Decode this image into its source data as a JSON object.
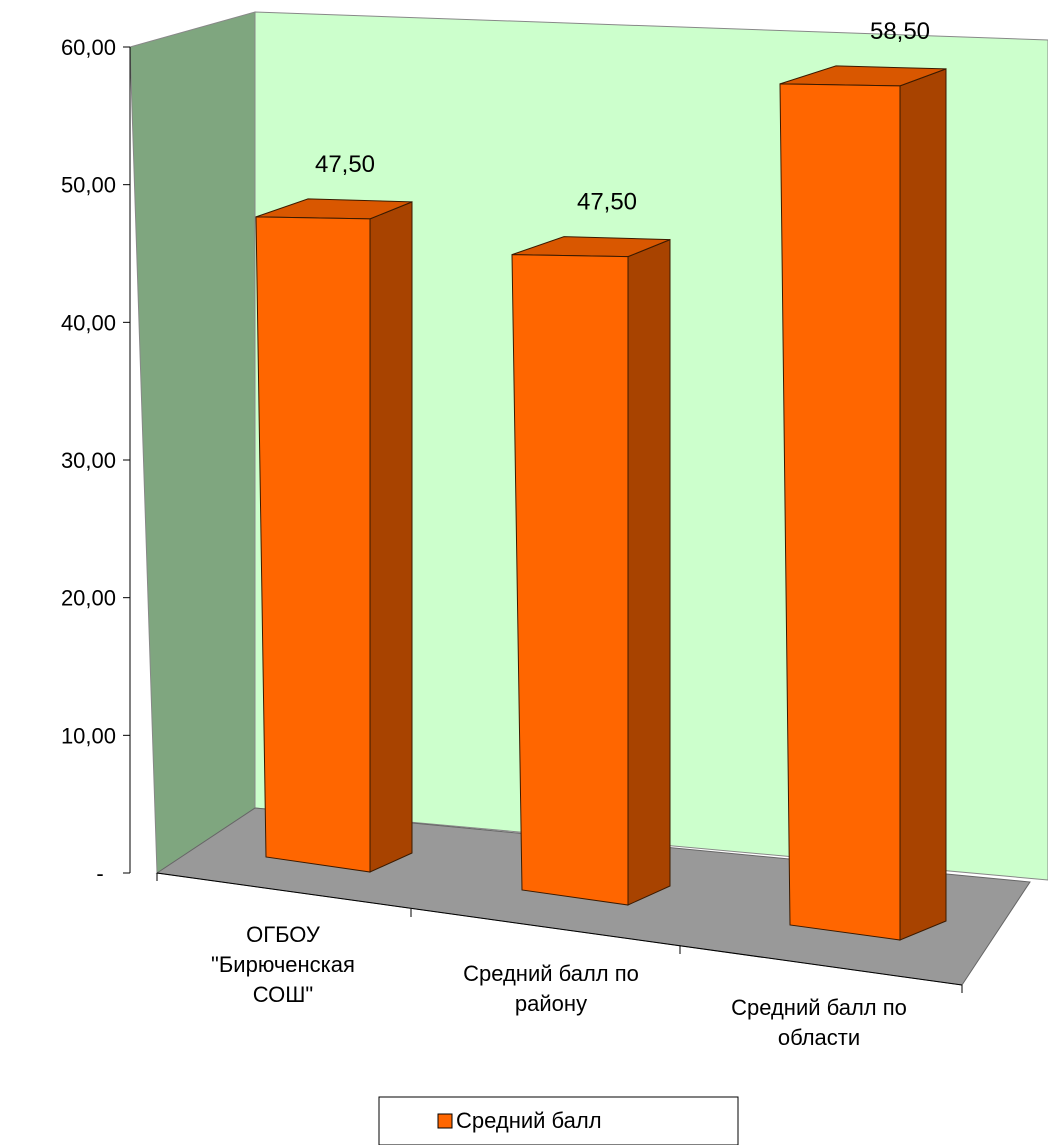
{
  "chart_data": {
    "type": "bar",
    "categories": [
      [
        "ОГБОУ",
        "\"Бирюченская",
        "СОШ\""
      ],
      [
        "Средний балл по",
        "району"
      ],
      [
        "Средний балл по",
        "области"
      ]
    ],
    "series": [
      {
        "name": "Средний балл",
        "values": [
          47.5,
          47.5,
          58.5
        ],
        "value_labels": [
          "47,50",
          "47,50",
          "58,50"
        ]
      }
    ],
    "ylim": [
      0,
      60
    ],
    "yticks": [
      0,
      10,
      20,
      30,
      40,
      50,
      60
    ],
    "ytick_labels": [
      "-",
      "10,00",
      "20,00",
      "30,00",
      "40,00",
      "50,00",
      "60,00"
    ],
    "grid": false,
    "legend_position": "bottom",
    "three_d": true,
    "colors": {
      "bar_front": "#FF6600",
      "bar_side": "#A84300",
      "bar_top": "#D95700",
      "bar_stroke": "#3a1a00",
      "back_wall": "#CCFFCC",
      "side_wall": "#7FA67F",
      "floor": "#999999"
    }
  }
}
